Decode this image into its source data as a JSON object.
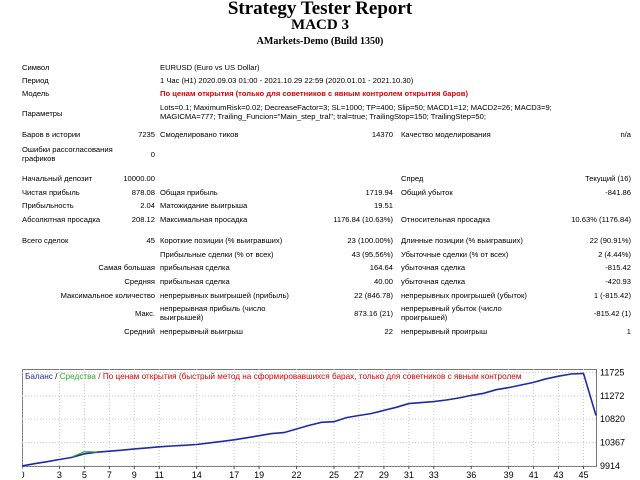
{
  "header": {
    "title": "Strategy Tester Report",
    "subtitle": "MACD 3",
    "build": "AMarkets-Demo (Build 1350)"
  },
  "info": {
    "symbol_label": "Символ",
    "symbol_value": "EURUSD (Euro vs US Dollar)",
    "period_label": "Период",
    "period_value": "1 Час (H1) 2020.09.03 01:00 - 2021.10.29 22:59 (2020.01.01 - 2021.10.30)",
    "model_label": "Модель",
    "model_value": "По ценам открытия (только для советников с явным контролем открытия баров)",
    "params_label": "Параметры",
    "params_line1": "Lots=0.1; MaximumRisk=0.02; DecreaseFactor=3; SL=1000; TP=400; Slip=50; MACD1=12; MACD2=26; MACD3=9;",
    "params_line2": "MAGICMA=777; Trailing_Funcion=\"Main_step_tral\"; tral=true; TrailingStop=150; TrailingStep=50;"
  },
  "bars": {
    "bars_label": "Баров в истории",
    "bars_value": "7235",
    "ticks_label": "Смоделировано тиков",
    "ticks_value": "14370",
    "quality_label": "Качество моделирования",
    "quality_value": "n/a",
    "errors_label_1": "Ошибки рассогласования",
    "errors_label_2": "графиков",
    "errors_value": "0"
  },
  "results": {
    "deposit_label": "Начальный депозит",
    "deposit_value": "10000.00",
    "spread_label": "Спред",
    "spread_value": "Текущий (16)",
    "net_label": "Чистая прибыль",
    "net_value": "878.08",
    "gross_profit_label": "Общая прибыль",
    "gross_profit_value": "1719.94",
    "gross_loss_label": "Общий убыток",
    "gross_loss_value": "-841.86",
    "pf_label": "Прибыльность",
    "pf_value": "2.04",
    "exp_label": "Матожидание выигрыша",
    "exp_value": "19.51",
    "abs_dd_label": "Абсолютная просадка",
    "abs_dd_value": "208.12",
    "max_dd_label": "Максимальная просадка",
    "max_dd_value": "1176.84 (10.63%)",
    "rel_dd_label": "Относительная просадка",
    "rel_dd_value": "10.63% (1176.84)"
  },
  "trades": {
    "total_label": "Всего сделок",
    "total_value": "45",
    "short_label": "Короткие позиции (% выигравших)",
    "short_value": "23 (100.00%)",
    "long_label": "Длинные позиции (% выигравших)",
    "long_value": "22 (90.91%)",
    "profit_trades_label": "Прибыльные сделки (% от всех)",
    "profit_trades_value": "43 (95.56%)",
    "loss_trades_label": "Убыточные сделки (% от всех)",
    "loss_trades_value": "2 (4.44%)",
    "largest_label": "Самая большая",
    "largest_profit_label": "прибыльная сделка",
    "largest_profit_value": "164.64",
    "largest_loss_label": "убыточная сделка",
    "largest_loss_value": "-815.42",
    "average_label": "Средняя",
    "avg_profit_label": "прибыльная сделка",
    "avg_profit_value": "40.00",
    "avg_loss_label": "убыточная сделка",
    "avg_loss_value": "-420.93",
    "max_count_label": "Максимальное количество",
    "max_cons_wins_label": "непрерывных выигрышей (прибыль)",
    "max_cons_wins_value": "22 (846.78)",
    "max_cons_losses_label": "непрерывных проигрышей (убыток)",
    "max_cons_losses_value": "1 (-815.42)",
    "max_label": "Макс.",
    "max_cons_profit_label_1": "непрерывная прибыль (число",
    "max_cons_profit_label_2": "выигрышей)",
    "max_cons_profit_value": "873.16 (21)",
    "max_cons_loss_label_1": "непрерывный убыток (число",
    "max_cons_loss_label_2": "проигрышей)",
    "max_cons_loss_value": "-815.42 (1)",
    "avg2_label": "Средний",
    "avg_cons_wins_label": "непрерывный выигрыш",
    "avg_cons_wins_value": "22",
    "avg_cons_losses_label": "непрерывный проигрыш",
    "avg_cons_losses_value": "1"
  },
  "chart_data": {
    "type": "line",
    "legend_balance": "Баланс",
    "legend_sep": "/",
    "legend_equity": "Средства",
    "legend_rest": "/ По ценам открытия (быстрый метод на сформировавшихся барах, только для советников с явным контролем",
    "colors": {
      "balance": "#1f2aa6",
      "equity": "#2eaa2e",
      "note": "#e00000",
      "grid": "#c8c8c8"
    },
    "x_ticks": [
      0,
      3,
      5,
      7,
      9,
      11,
      14,
      17,
      19,
      22,
      25,
      27,
      29,
      31,
      33,
      36,
      39,
      41,
      43,
      45
    ],
    "y_ticks": [
      9914,
      10367,
      10820,
      11272,
      11725
    ],
    "xlim": [
      0,
      46
    ],
    "ylim": [
      9914,
      11790
    ],
    "series": [
      {
        "name": "Баланс",
        "x": [
          0,
          1,
          2,
          3,
          4,
          5,
          6,
          7,
          8,
          9,
          10,
          11,
          12,
          13,
          14,
          15,
          16,
          17,
          18,
          19,
          20,
          21,
          22,
          23,
          24,
          25,
          26,
          27,
          28,
          29,
          30,
          31,
          32,
          33,
          34,
          35,
          36,
          37,
          38,
          39,
          40,
          41,
          42,
          43,
          44,
          45,
          46
        ],
        "values": [
          9914,
          9958,
          9998,
          10040,
          10080,
          10150,
          10180,
          10200,
          10220,
          10245,
          10265,
          10285,
          10300,
          10315,
          10330,
          10360,
          10390,
          10420,
          10460,
          10500,
          10540,
          10560,
          10630,
          10700,
          10760,
          10770,
          10850,
          10890,
          10930,
          10990,
          11050,
          11120,
          11140,
          11160,
          11190,
          11230,
          11280,
          11320,
          11390,
          11430,
          11480,
          11530,
          11600,
          11650,
          11693,
          11705,
          10890
        ]
      },
      {
        "name": "Средства",
        "x": [
          4,
          5,
          6
        ],
        "values": [
          10090,
          10190,
          10185
        ]
      }
    ]
  }
}
